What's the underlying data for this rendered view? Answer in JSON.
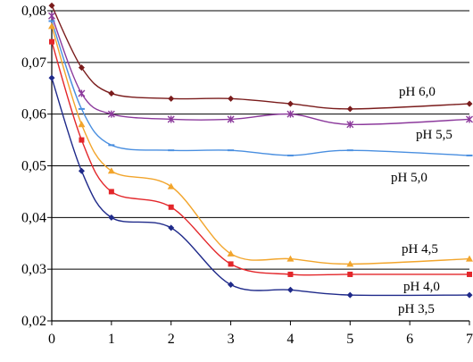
{
  "chart_data": {
    "type": "line",
    "title": "",
    "xlabel": "",
    "ylabel": "",
    "xlim": [
      0,
      7
    ],
    "ylim": [
      0.02,
      0.08
    ],
    "grid": "horizontal",
    "x_ticks": [
      {
        "value": 0,
        "label": "0"
      },
      {
        "value": 1,
        "label": "1"
      },
      {
        "value": 2,
        "label": "2"
      },
      {
        "value": 3,
        "label": "3"
      },
      {
        "value": 4,
        "label": "4"
      },
      {
        "value": 5,
        "label": "5"
      },
      {
        "value": 6,
        "label": "6"
      },
      {
        "value": 7,
        "label": "7"
      }
    ],
    "y_ticks": [
      {
        "value": 0.02,
        "label": "0,02"
      },
      {
        "value": 0.03,
        "label": "0,03"
      },
      {
        "value": 0.04,
        "label": "0,04"
      },
      {
        "value": 0.05,
        "label": "0,05"
      },
      {
        "value": 0.06,
        "label": "0,06"
      },
      {
        "value": 0.07,
        "label": "0,07"
      },
      {
        "value": 0.08,
        "label": "0,08"
      }
    ],
    "series": [
      {
        "name": "pH 6,0",
        "color": "#7a1c1c",
        "marker": "diamond",
        "x": [
          0,
          0.5,
          1,
          2,
          3,
          4,
          5,
          7
        ],
        "y": [
          0.081,
          0.069,
          0.064,
          0.063,
          0.063,
          0.062,
          0.061,
          0.062
        ]
      },
      {
        "name": "pH 5,5",
        "color": "#8c3a9c",
        "marker": "star",
        "x": [
          0,
          0.5,
          1,
          2,
          3,
          4,
          5,
          7
        ],
        "y": [
          0.079,
          0.064,
          0.06,
          0.059,
          0.059,
          0.06,
          0.058,
          0.059
        ]
      },
      {
        "name": "pH 5,0",
        "color": "#4a8fe0",
        "marker": "dash",
        "x": [
          0,
          0.5,
          1,
          2,
          3,
          4,
          5,
          7
        ],
        "y": [
          0.078,
          0.061,
          0.054,
          0.053,
          0.053,
          0.052,
          0.053,
          0.052
        ]
      },
      {
        "name": "pH 4,5",
        "color": "#f2a52c",
        "marker": "triangle",
        "x": [
          0,
          0.5,
          1,
          2,
          3,
          4,
          5,
          7
        ],
        "y": [
          0.077,
          0.058,
          0.049,
          0.046,
          0.033,
          0.032,
          0.031,
          0.032
        ]
      },
      {
        "name": "pH 4,0",
        "color": "#e3262a",
        "marker": "square",
        "x": [
          0,
          0.5,
          1,
          2,
          3,
          4,
          5,
          7
        ],
        "y": [
          0.074,
          0.055,
          0.045,
          0.042,
          0.031,
          0.029,
          0.029,
          0.029
        ]
      },
      {
        "name": "pH 3,5",
        "color": "#1f2a8a",
        "marker": "diamond",
        "x": [
          0,
          0.5,
          1,
          2,
          3,
          4,
          5,
          7
        ],
        "y": [
          0.067,
          0.049,
          0.04,
          0.038,
          0.027,
          0.026,
          0.025,
          0.025
        ]
      }
    ]
  }
}
